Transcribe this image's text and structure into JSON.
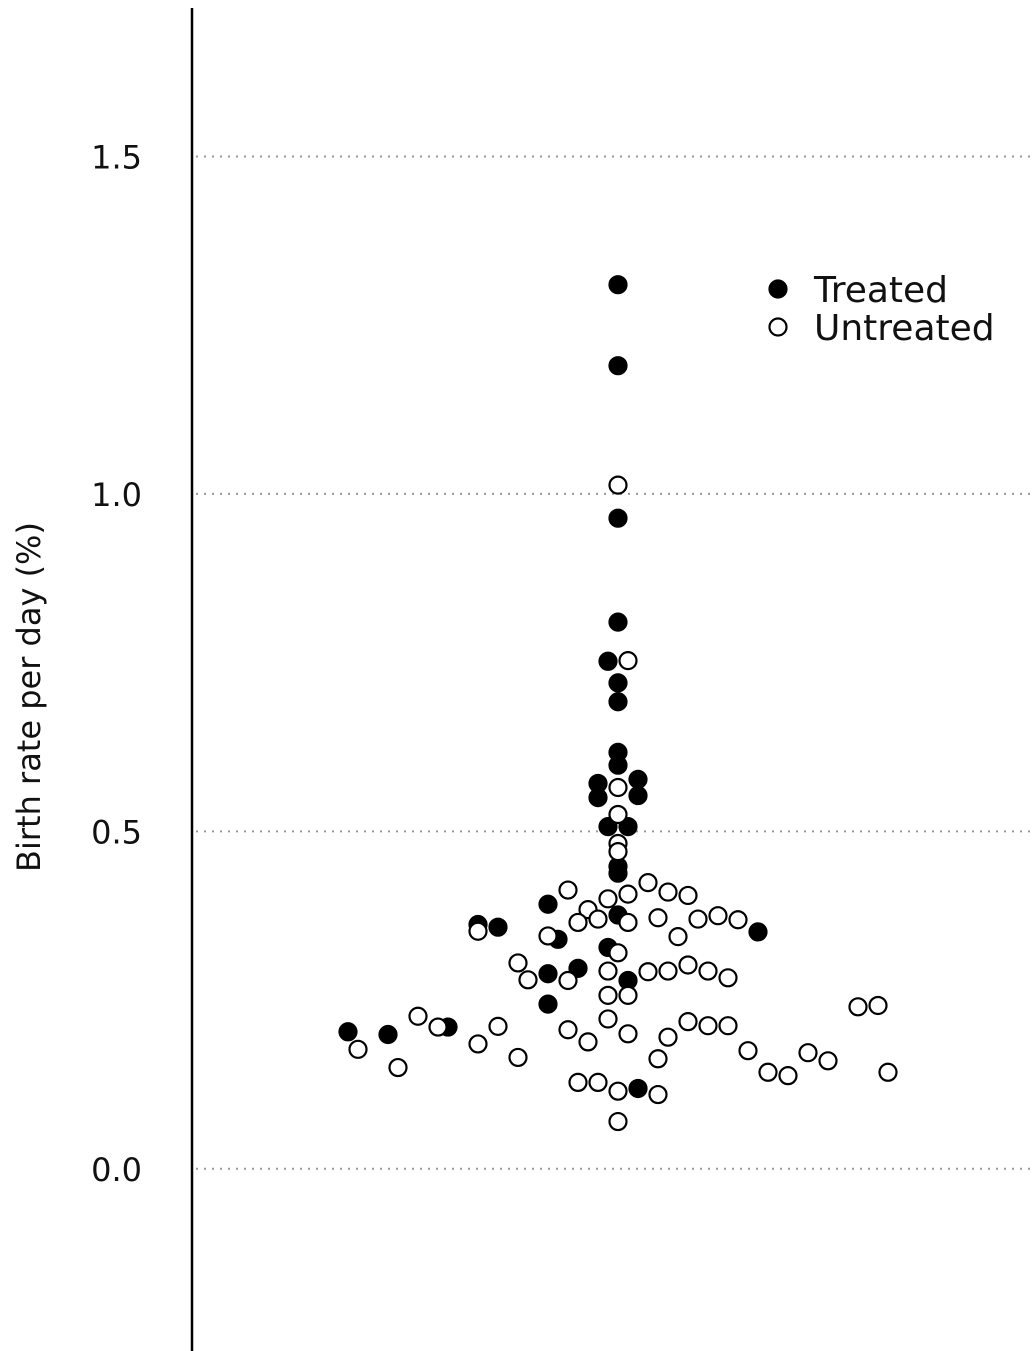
{
  "chart_data": {
    "type": "scatter",
    "ylabel": "Birth rate per day (%)",
    "ylim": [
      -0.27,
      1.72
    ],
    "yticks": [
      0.0,
      0.5,
      1.0,
      1.5
    ],
    "ytick_labels": [
      "0.0",
      "0.5",
      "1.0",
      "1.5"
    ],
    "grid": "horizontal dotted",
    "legend": {
      "position": "top-right",
      "entries": [
        "Treated",
        "Untreated"
      ]
    },
    "series": [
      {
        "name": "Treated",
        "marker": "filled circle",
        "color": "#000000",
        "points": [
          [
            -0.012,
            1.31
          ],
          [
            -0.012,
            1.19
          ],
          [
            -0.012,
            0.964
          ],
          [
            -0.012,
            0.81
          ],
          [
            -0.022,
            0.752
          ],
          [
            -0.012,
            0.72
          ],
          [
            -0.012,
            0.692
          ],
          [
            -0.012,
            0.617
          ],
          [
            -0.012,
            0.598
          ],
          [
            -0.032,
            0.571
          ],
          [
            0.008,
            0.577
          ],
          [
            -0.032,
            0.55
          ],
          [
            0.008,
            0.553
          ],
          [
            -0.022,
            0.507
          ],
          [
            -0.002,
            0.507
          ],
          [
            -0.012,
            0.448
          ],
          [
            -0.012,
            0.438
          ],
          [
            -0.082,
            0.392
          ],
          [
            -0.012,
            0.376
          ],
          [
            -0.152,
            0.362
          ],
          [
            -0.132,
            0.358
          ],
          [
            -0.072,
            0.34
          ],
          [
            0.128,
            0.351
          ],
          [
            -0.022,
            0.328
          ],
          [
            -0.052,
            0.297
          ],
          [
            -0.082,
            0.289
          ],
          [
            -0.002,
            0.279
          ],
          [
            -0.082,
            0.244
          ],
          [
            -0.282,
            0.203
          ],
          [
            -0.242,
            0.199
          ],
          [
            -0.182,
            0.21
          ],
          [
            0.008,
            0.119
          ]
        ]
      },
      {
        "name": "Untreated",
        "marker": "open circle",
        "color": "#000000",
        "points": [
          [
            -0.012,
            1.013
          ],
          [
            -0.002,
            0.753
          ],
          [
            -0.012,
            0.565
          ],
          [
            -0.012,
            0.525
          ],
          [
            -0.012,
            0.482
          ],
          [
            -0.012,
            0.47
          ],
          [
            0.018,
            0.424
          ],
          [
            -0.062,
            0.413
          ],
          [
            0.038,
            0.41
          ],
          [
            0.058,
            0.405
          ],
          [
            -0.022,
            0.4
          ],
          [
            -0.002,
            0.407
          ],
          [
            -0.042,
            0.384
          ],
          [
            -0.032,
            0.37
          ],
          [
            -0.052,
            0.365
          ],
          [
            0.028,
            0.372
          ],
          [
            -0.002,
            0.365
          ],
          [
            0.068,
            0.37
          ],
          [
            0.088,
            0.375
          ],
          [
            0.108,
            0.369
          ],
          [
            -0.152,
            0.352
          ],
          [
            -0.082,
            0.345
          ],
          [
            0.048,
            0.344
          ],
          [
            -0.012,
            0.32
          ],
          [
            -0.112,
            0.305
          ],
          [
            -0.102,
            0.28
          ],
          [
            -0.062,
            0.279
          ],
          [
            -0.022,
            0.293
          ],
          [
            0.018,
            0.292
          ],
          [
            0.038,
            0.293
          ],
          [
            0.058,
            0.302
          ],
          [
            0.078,
            0.293
          ],
          [
            0.098,
            0.283
          ],
          [
            -0.022,
            0.257
          ],
          [
            -0.002,
            0.257
          ],
          [
            -0.212,
            0.226
          ],
          [
            -0.022,
            0.222
          ],
          [
            0.058,
            0.218
          ],
          [
            0.078,
            0.212
          ],
          [
            0.098,
            0.212
          ],
          [
            0.228,
            0.24
          ],
          [
            0.248,
            0.242
          ],
          [
            -0.192,
            0.21
          ],
          [
            -0.132,
            0.211
          ],
          [
            -0.062,
            0.206
          ],
          [
            -0.002,
            0.2
          ],
          [
            0.038,
            0.195
          ],
          [
            -0.042,
            0.188
          ],
          [
            -0.152,
            0.185
          ],
          [
            -0.272,
            0.177
          ],
          [
            0.118,
            0.175
          ],
          [
            0.178,
            0.172
          ],
          [
            -0.112,
            0.165
          ],
          [
            0.028,
            0.163
          ],
          [
            0.198,
            0.16
          ],
          [
            -0.232,
            0.15
          ],
          [
            0.138,
            0.143
          ],
          [
            0.158,
            0.138
          ],
          [
            0.258,
            0.143
          ],
          [
            -0.052,
            0.128
          ],
          [
            -0.032,
            0.128
          ],
          [
            -0.012,
            0.115
          ],
          [
            0.028,
            0.11
          ],
          [
            -0.012,
            0.07
          ]
        ]
      }
    ]
  }
}
